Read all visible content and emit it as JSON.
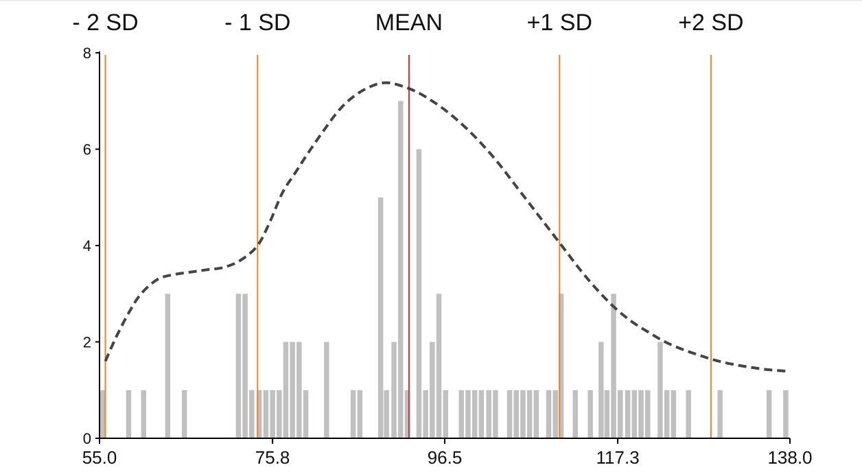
{
  "chart_data": {
    "type": "bar",
    "title": "",
    "xlabel": "",
    "ylabel": "",
    "xlim": [
      55.0,
      138.0
    ],
    "ylim": [
      0,
      8
    ],
    "x_ticks": [
      "55.0",
      "75.8",
      "96.5",
      "117.3",
      "138.0"
    ],
    "y_ticks": [
      "0",
      "2",
      "4",
      "6",
      "8"
    ],
    "grid": false,
    "legend": "none",
    "bins": [
      {
        "x": 55.4,
        "value": 1
      },
      {
        "x": 58.5,
        "value": 1
      },
      {
        "x": 60.3,
        "value": 1
      },
      {
        "x": 63.2,
        "value": 3
      },
      {
        "x": 65.2,
        "value": 1
      },
      {
        "x": 71.7,
        "value": 3
      },
      {
        "x": 72.5,
        "value": 3
      },
      {
        "x": 73.3,
        "value": 1
      },
      {
        "x": 74.2,
        "value": 1
      },
      {
        "x": 75.0,
        "value": 1
      },
      {
        "x": 75.8,
        "value": 1
      },
      {
        "x": 76.6,
        "value": 1
      },
      {
        "x": 77.4,
        "value": 2
      },
      {
        "x": 78.2,
        "value": 2
      },
      {
        "x": 79.0,
        "value": 2
      },
      {
        "x": 79.8,
        "value": 1
      },
      {
        "x": 82.3,
        "value": 2
      },
      {
        "x": 85.5,
        "value": 1
      },
      {
        "x": 86.3,
        "value": 1
      },
      {
        "x": 88.8,
        "value": 5
      },
      {
        "x": 89.5,
        "value": 1
      },
      {
        "x": 90.4,
        "value": 2
      },
      {
        "x": 91.2,
        "value": 7
      },
      {
        "x": 92.0,
        "value": 1
      },
      {
        "x": 93.4,
        "value": 6
      },
      {
        "x": 94.2,
        "value": 1
      },
      {
        "x": 95.0,
        "value": 2
      },
      {
        "x": 95.8,
        "value": 3
      },
      {
        "x": 96.6,
        "value": 1
      },
      {
        "x": 98.5,
        "value": 1
      },
      {
        "x": 99.3,
        "value": 1
      },
      {
        "x": 100.1,
        "value": 1
      },
      {
        "x": 100.9,
        "value": 1
      },
      {
        "x": 101.8,
        "value": 1
      },
      {
        "x": 102.6,
        "value": 1
      },
      {
        "x": 104.3,
        "value": 1
      },
      {
        "x": 105.1,
        "value": 1
      },
      {
        "x": 105.9,
        "value": 1
      },
      {
        "x": 106.7,
        "value": 1
      },
      {
        "x": 107.5,
        "value": 1
      },
      {
        "x": 109.0,
        "value": 1
      },
      {
        "x": 109.8,
        "value": 1
      },
      {
        "x": 110.5,
        "value": 3
      },
      {
        "x": 112.2,
        "value": 1
      },
      {
        "x": 114.0,
        "value": 1
      },
      {
        "x": 115.3,
        "value": 2
      },
      {
        "x": 116.0,
        "value": 1
      },
      {
        "x": 116.8,
        "value": 3
      },
      {
        "x": 117.6,
        "value": 1
      },
      {
        "x": 118.5,
        "value": 1
      },
      {
        "x": 119.3,
        "value": 1
      },
      {
        "x": 120.1,
        "value": 1
      },
      {
        "x": 120.9,
        "value": 1
      },
      {
        "x": 122.4,
        "value": 2
      },
      {
        "x": 123.2,
        "value": 1
      },
      {
        "x": 124.0,
        "value": 1
      },
      {
        "x": 125.8,
        "value": 1
      },
      {
        "x": 129.6,
        "value": 1
      },
      {
        "x": 135.5,
        "value": 1
      },
      {
        "x": 137.5,
        "value": 1
      }
    ],
    "curve": {
      "style": "dashed",
      "color": "#444444",
      "points": [
        [
          55.7,
          1.6
        ],
        [
          57.0,
          2.1
        ],
        [
          58.5,
          2.6
        ],
        [
          60.0,
          3.0
        ],
        [
          62.0,
          3.3
        ],
        [
          64.0,
          3.4
        ],
        [
          66.0,
          3.45
        ],
        [
          68.0,
          3.5
        ],
        [
          70.0,
          3.55
        ],
        [
          72.0,
          3.7
        ],
        [
          74.0,
          4.0
        ],
        [
          75.5,
          4.5
        ],
        [
          77.0,
          5.1
        ],
        [
          78.5,
          5.5
        ],
        [
          80.0,
          5.9
        ],
        [
          82.0,
          6.4
        ],
        [
          84.0,
          6.85
        ],
        [
          86.0,
          7.15
        ],
        [
          88.0,
          7.33
        ],
        [
          89.5,
          7.38
        ],
        [
          91.0,
          7.33
        ],
        [
          93.0,
          7.2
        ],
        [
          95.0,
          7.0
        ],
        [
          97.0,
          6.75
        ],
        [
          99.0,
          6.45
        ],
        [
          101.0,
          6.1
        ],
        [
          103.0,
          5.7
        ],
        [
          105.0,
          5.25
        ],
        [
          107.0,
          4.8
        ],
        [
          109.0,
          4.35
        ],
        [
          111.0,
          3.9
        ],
        [
          113.0,
          3.45
        ],
        [
          115.0,
          3.05
        ],
        [
          117.0,
          2.7
        ],
        [
          119.0,
          2.42
        ],
        [
          121.0,
          2.2
        ],
        [
          123.0,
          2.0
        ],
        [
          125.0,
          1.85
        ],
        [
          127.0,
          1.73
        ],
        [
          129.0,
          1.62
        ],
        [
          131.0,
          1.54
        ],
        [
          133.0,
          1.48
        ],
        [
          135.0,
          1.43
        ],
        [
          137.0,
          1.4
        ],
        [
          138.0,
          1.39
        ]
      ]
    },
    "reference_lines": [
      {
        "name": "- 2 SD",
        "x": 55.7,
        "color": "#f5821f"
      },
      {
        "name": "- 1 SD",
        "x": 74.0,
        "color": "#f5821f"
      },
      {
        "name": "MEAN",
        "x": 92.2,
        "color": "#e8262d"
      },
      {
        "name": "+1 SD",
        "x": 110.3,
        "color": "#f5821f"
      },
      {
        "name": "+2 SD",
        "x": 128.5,
        "color": "#f5821f"
      }
    ],
    "colors": {
      "bars": "#c0c0c0",
      "axis": "#000000"
    }
  }
}
